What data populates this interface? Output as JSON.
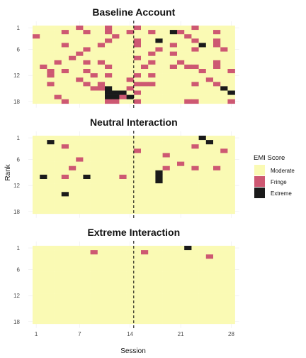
{
  "chart_data": {
    "type": "heatmap",
    "xlabel": "Session",
    "ylabel": "Rank",
    "x_ticks": [
      1,
      7,
      14,
      21,
      28
    ],
    "y_ticks": [
      1,
      6,
      12,
      18
    ],
    "x_range": [
      1,
      28
    ],
    "y_range": [
      1,
      18
    ],
    "y_reversed": true,
    "reference_line_x": 14.5,
    "grid": true,
    "legend": {
      "title": "EMI Score",
      "position": "right",
      "entries": [
        {
          "label": "Moderate",
          "color": "#fafab4"
        },
        {
          "label": "Fringe",
          "color": "#cd5872"
        },
        {
          "label": "Extreme",
          "color": "#1a1a1a"
        }
      ]
    },
    "category_codes": {
      "0": "Moderate",
      "1": "Fringe",
      "2": "Extreme"
    },
    "panels": [
      {
        "title": "Baseline Account",
        "rows": [
          "0000001000100010000000100000",
          "0000100100100100100210000100",
          "1000000000010000000001000000",
          "0000000000100010020000100100",
          "0000100001000010000100020100",
          "0000000100000000010000100010",
          "0000001000000000100100000000",
          "0000010000000010000000000000",
          "0001000101000000100010000100",
          "0100000000100001000101100100",
          "0010100100000000000000010001",
          "0010000010100010100000000000",
          "0000001000000100000000001000",
          "0010000101000011100000100100",
          "0000000011200100000000000020",
          "0000000000222010000000000002",
          "0001000000221200000000000000",
          "0000100000110010000001100001"
        ]
      },
      {
        "title": "Neutral Interaction",
        "rows": [
          "0000000000000000000000020000",
          "0020000000000000000000002000",
          "0000100000000000000000100000",
          "0000000000000010000000000010",
          "0000000000000000001000000000",
          "0000001000000000000000000000",
          "0000000000000000000010000000",
          "0000010000000000001000100100",
          "0000000000000000020000000000",
          "0200100200001000020000000000",
          "0000000000000000020000000000",
          "0000000000000000000000000000",
          "0000000000000000000000000000",
          "0000200000000000000000000000",
          "0000000000000000000000000000",
          "0000000000000000000000000000",
          "0000000000000000000000000000",
          "0000000000000000000000000000"
        ]
      },
      {
        "title": "Extreme Interaction",
        "rows": [
          "0000000000000000000002000000",
          "0000000010000001000000000000",
          "0000000000000000000000001000",
          "0000000000000000000000000000",
          "0000000000000000000000000000",
          "0000000000000000000000000000",
          "0000000000000000000000000000",
          "0000000000000000000000000000",
          "0000000000000000000000000000",
          "0000000000000000000000000000",
          "0000000000000000000000000000",
          "0000000000000000000000000000",
          "0000000000000000000000000000",
          "0000000000000000000000000000",
          "0000000000000000000000000000",
          "0000000000000000000000000000",
          "0000000000000000000000000000",
          "0000000000000000000000000000"
        ]
      }
    ]
  }
}
